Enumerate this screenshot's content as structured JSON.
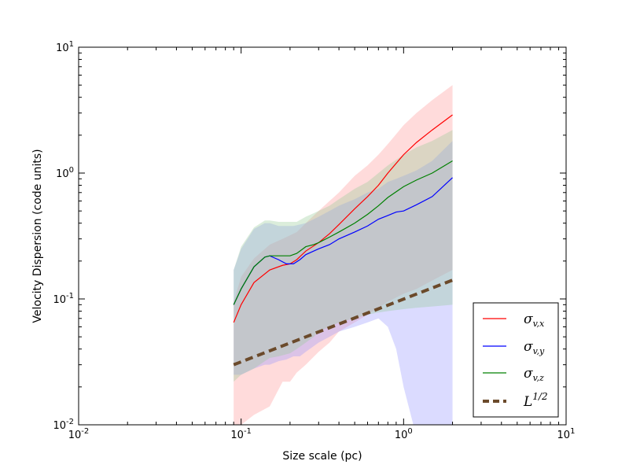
{
  "chart_data": {
    "type": "line",
    "xlabel": "Size scale (pc)",
    "ylabel": "Velocity Dispersion (code units)",
    "xscale": "log",
    "yscale": "log",
    "xlim": [
      0.01,
      10
    ],
    "ylim": [
      0.01,
      10
    ],
    "x_ticks": [
      {
        "value": 0.01,
        "base": "10",
        "exp": "-2"
      },
      {
        "value": 0.1,
        "base": "10",
        "exp": "-1"
      },
      {
        "value": 1,
        "base": "10",
        "exp": "0"
      },
      {
        "value": 10,
        "base": "10",
        "exp": "1"
      }
    ],
    "y_ticks": [
      {
        "value": 0.01,
        "base": "10",
        "exp": "-2"
      },
      {
        "value": 0.1,
        "base": "10",
        "exp": "-1"
      },
      {
        "value": 1,
        "base": "10",
        "exp": "0"
      },
      {
        "value": 10,
        "base": "10",
        "exp": "1"
      }
    ],
    "legend_position": "lower-right",
    "grid": false,
    "series": [
      {
        "name": "σ_{v,x}",
        "legend_main": "σ",
        "legend_sub": "v,x",
        "color": "#ff0000",
        "style": "solid",
        "x": [
          0.09,
          0.1,
          0.12,
          0.15,
          0.18,
          0.2,
          0.22,
          0.25,
          0.3,
          0.35,
          0.4,
          0.5,
          0.6,
          0.7,
          0.8,
          1.0,
          1.2,
          1.5,
          2.0
        ],
        "y": [
          0.065,
          0.09,
          0.135,
          0.17,
          0.185,
          0.19,
          0.205,
          0.24,
          0.28,
          0.33,
          0.39,
          0.52,
          0.65,
          0.8,
          1.0,
          1.4,
          1.75,
          2.2,
          2.9
        ],
        "band_lower": [
          0.01,
          0.01,
          0.012,
          0.014,
          0.022,
          0.022,
          0.026,
          0.03,
          0.038,
          0.045,
          0.055,
          0.065,
          0.075,
          0.085,
          0.095,
          0.11,
          0.12,
          0.14,
          0.17
        ],
        "band_upper": [
          0.095,
          0.15,
          0.21,
          0.27,
          0.3,
          0.32,
          0.34,
          0.4,
          0.5,
          0.6,
          0.7,
          0.95,
          1.15,
          1.4,
          1.7,
          2.4,
          3.0,
          3.8,
          5.0
        ],
        "band_color": "#ff9999"
      },
      {
        "name": "σ_{v,y}",
        "legend_main": "σ",
        "legend_sub": "v,y",
        "color": "#0000ff",
        "style": "solid",
        "x": [
          0.09,
          0.1,
          0.12,
          0.14,
          0.15,
          0.17,
          0.19,
          0.21,
          0.23,
          0.25,
          0.3,
          0.35,
          0.4,
          0.5,
          0.6,
          0.7,
          0.8,
          0.9,
          1.0,
          1.2,
          1.5,
          2.0
        ],
        "y": [
          0.09,
          0.12,
          0.18,
          0.215,
          0.22,
          0.205,
          0.19,
          0.19,
          0.205,
          0.225,
          0.25,
          0.27,
          0.3,
          0.34,
          0.38,
          0.43,
          0.46,
          0.49,
          0.5,
          0.56,
          0.65,
          0.92
        ],
        "band_lower": [
          0.025,
          0.025,
          0.028,
          0.03,
          0.03,
          0.032,
          0.033,
          0.035,
          0.035,
          0.038,
          0.045,
          0.05,
          0.055,
          0.06,
          0.065,
          0.07,
          0.06,
          0.04,
          0.02,
          0.008,
          0.005,
          0.005
        ],
        "band_upper": [
          0.17,
          0.25,
          0.36,
          0.4,
          0.4,
          0.38,
          0.38,
          0.38,
          0.39,
          0.4,
          0.45,
          0.5,
          0.55,
          0.62,
          0.7,
          0.75,
          0.85,
          0.9,
          0.95,
          1.05,
          1.25,
          1.8
        ],
        "band_color": "#9999ff"
      },
      {
        "name": "σ_{v,z}",
        "legend_main": "σ",
        "legend_sub": "v,z",
        "color": "#008000",
        "style": "solid",
        "x": [
          0.09,
          0.1,
          0.12,
          0.14,
          0.15,
          0.17,
          0.2,
          0.22,
          0.25,
          0.28,
          0.3,
          0.35,
          0.4,
          0.5,
          0.6,
          0.7,
          0.8,
          1.0,
          1.2,
          1.5,
          2.0
        ],
        "y": [
          0.09,
          0.12,
          0.18,
          0.215,
          0.22,
          0.22,
          0.22,
          0.23,
          0.26,
          0.27,
          0.28,
          0.31,
          0.34,
          0.4,
          0.47,
          0.55,
          0.64,
          0.78,
          0.88,
          1.0,
          1.25
        ],
        "band_lower": [
          0.022,
          0.025,
          0.028,
          0.032,
          0.034,
          0.035,
          0.037,
          0.04,
          0.045,
          0.05,
          0.055,
          0.06,
          0.065,
          0.07,
          0.075,
          0.078,
          0.08,
          0.083,
          0.085,
          0.087,
          0.09
        ],
        "band_upper": [
          0.17,
          0.26,
          0.37,
          0.42,
          0.42,
          0.41,
          0.41,
          0.41,
          0.45,
          0.48,
          0.5,
          0.55,
          0.62,
          0.75,
          0.85,
          1.0,
          1.15,
          1.4,
          1.6,
          1.8,
          2.2
        ],
        "band_color": "#99cc99"
      },
      {
        "name": "L^{1/2}",
        "legend_main": "L",
        "legend_sup": "1/2",
        "color": "#6b4a2b",
        "style": "dashed",
        "x": [
          0.09,
          2.0
        ],
        "y": [
          0.03,
          0.141
        ]
      }
    ]
  }
}
